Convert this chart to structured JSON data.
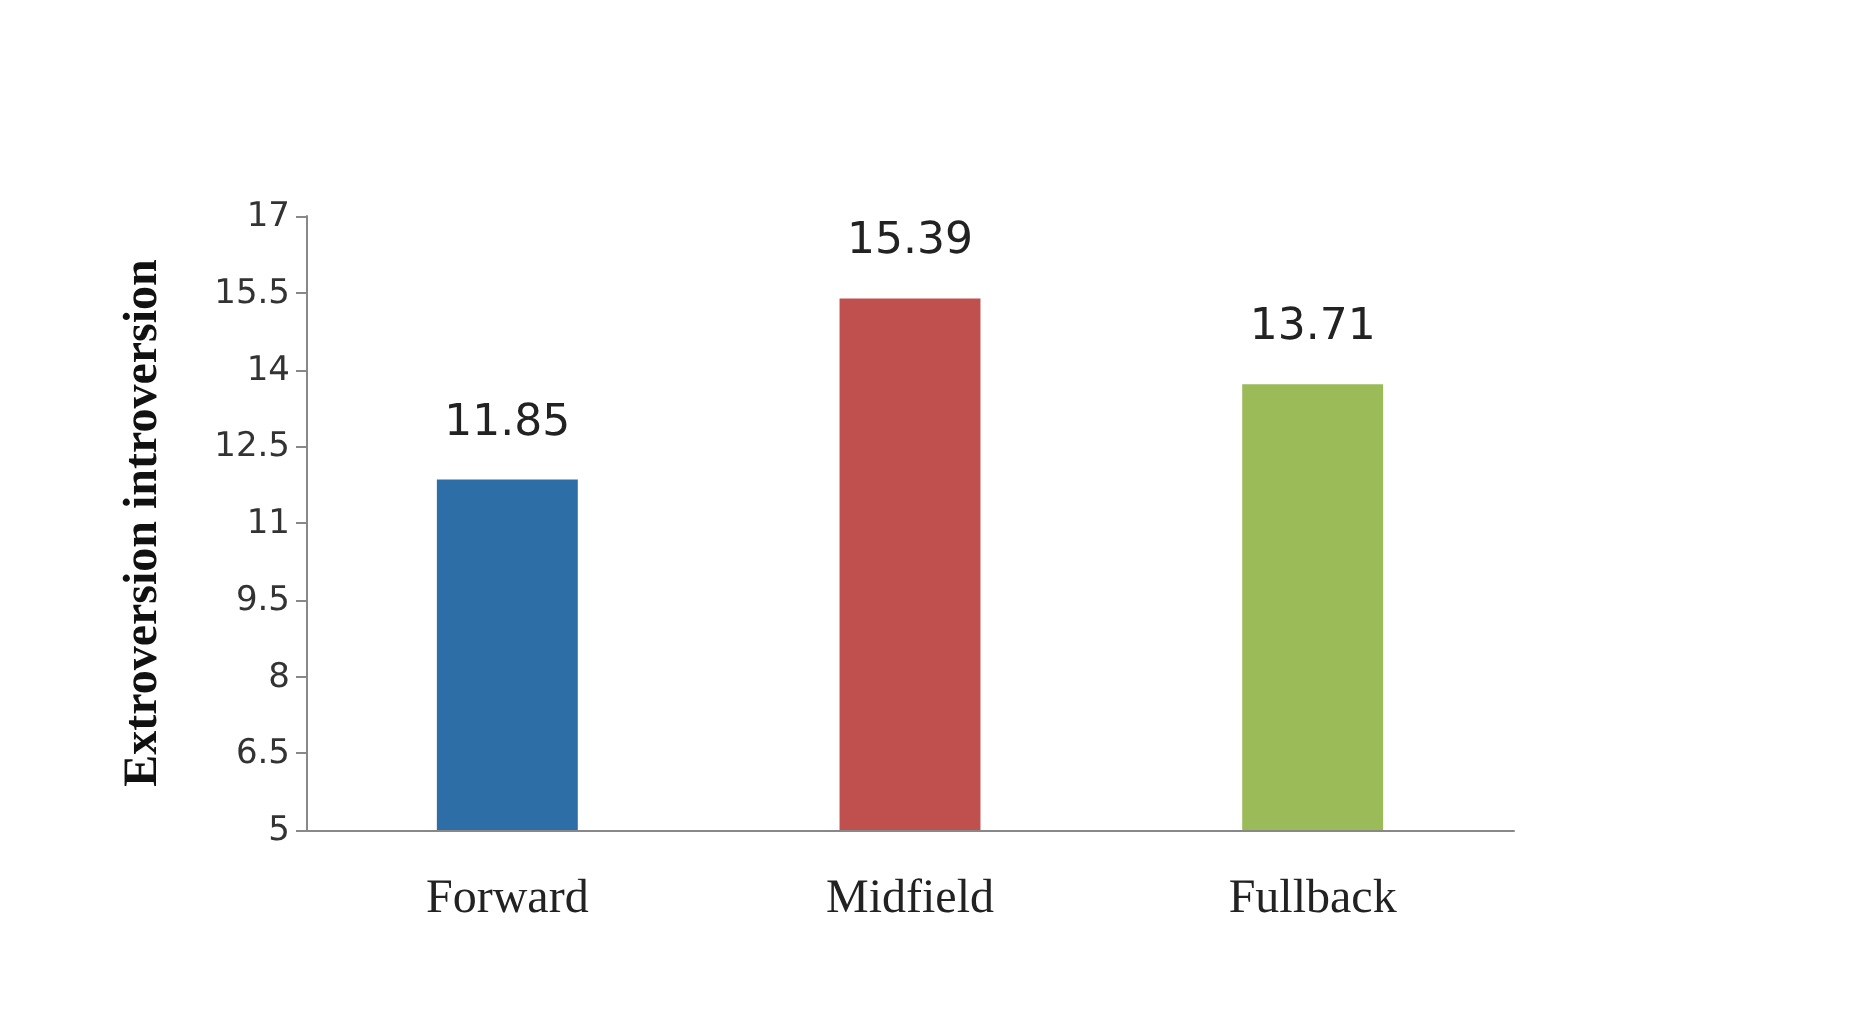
{
  "chart_data": {
    "type": "bar",
    "ylabel": "Extroversion introversion",
    "categories": [
      "Forward",
      "Midfield",
      "Fullback"
    ],
    "values": [
      11.85,
      15.39,
      13.71
    ],
    "colors": [
      "#2e6ea6",
      "#c0504d",
      "#9bbb59"
    ],
    "ylim": [
      5,
      17
    ],
    "yticks": [
      5,
      6.5,
      8,
      9.5,
      11,
      12.5,
      14,
      15.5,
      17
    ],
    "data_labels": true,
    "grid": false
  }
}
